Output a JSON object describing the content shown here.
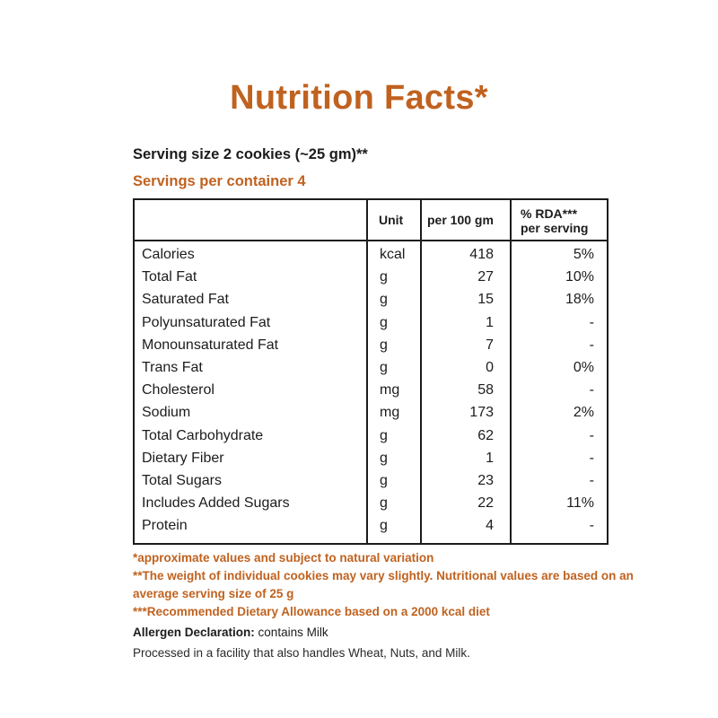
{
  "title": "Nutrition Facts*",
  "serving_size": "Serving size 2 cookies (~25 gm)**",
  "servings_per_container": "Servings per container 4",
  "table": {
    "headers": {
      "unit": "Unit",
      "per_100": "per 100 gm",
      "rda_line1": "% RDA***",
      "rda_line2": "per serving"
    },
    "rows": [
      {
        "name": "Calories",
        "unit": "kcal",
        "value": "418",
        "rda": "5%"
      },
      {
        "name": "Total Fat",
        "unit": "g",
        "value": "27",
        "rda": "10%"
      },
      {
        "name": "Saturated Fat",
        "unit": "g",
        "value": "15",
        "rda": "18%"
      },
      {
        "name": "Polyunsaturated Fat",
        "unit": "g",
        "value": "1",
        "rda": "-"
      },
      {
        "name": "Monounsaturated Fat",
        "unit": "g",
        "value": "7",
        "rda": "-"
      },
      {
        "name": "Trans Fat",
        "unit": "g",
        "value": "0",
        "rda": "0%"
      },
      {
        "name": "Cholesterol",
        "unit": "mg",
        "value": "58",
        "rda": "-"
      },
      {
        "name": "Sodium",
        "unit": "mg",
        "value": "173",
        "rda": "2%"
      },
      {
        "name": "Total Carbohydrate",
        "unit": "g",
        "value": "62",
        "rda": "-"
      },
      {
        "name": "Dietary Fiber",
        "unit": "g",
        "value": "1",
        "rda": "-"
      },
      {
        "name": "Total Sugars",
        "unit": "g",
        "value": "23",
        "rda": "-"
      },
      {
        "name": "Includes Added Sugars",
        "unit": "g",
        "value": "22",
        "rda": "11%"
      },
      {
        "name": "Protein",
        "unit": "g",
        "value": "4",
        "rda": "-"
      }
    ]
  },
  "notes": {
    "approx": "*approximate values and subject to natural variation",
    "weight": "**The weight of individual cookies may vary slightly. Nutritional values are based on an average serving size of 25 g",
    "rda": "***Recommended Dietary Allowance based on a 2000 kcal diet"
  },
  "allergen": {
    "label": "Allergen Declaration:",
    "value": " contains Milk"
  },
  "facility": "Processed in a facility that also handles Wheat, Nuts, and Milk.",
  "colors": {
    "accent": "#c0621f",
    "text": "#1c1c1c"
  }
}
